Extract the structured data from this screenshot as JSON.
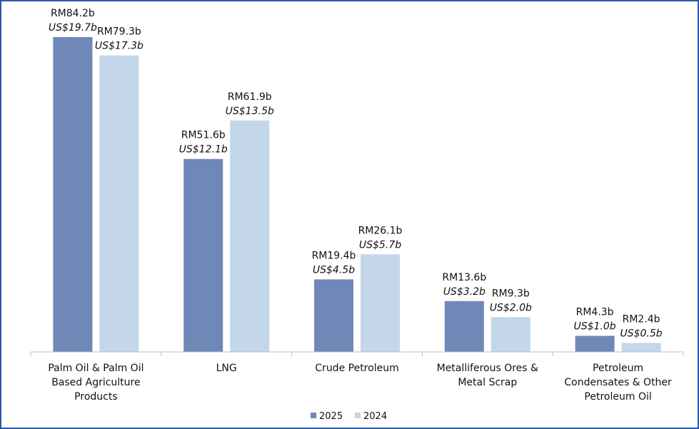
{
  "chart_data": {
    "type": "bar",
    "categories": [
      [
        "Palm Oil & Palm Oil",
        "Based Agriculture",
        "Products"
      ],
      [
        "LNG"
      ],
      [
        "Crude Petroleum"
      ],
      [
        "Metalliferous Ores &",
        "Metal Scrap"
      ],
      [
        "Petroleum",
        "Condensates & Other",
        "Petroleum Oil"
      ]
    ],
    "series": [
      {
        "name": "2025",
        "color": "#6f88b8",
        "values": [
          84.2,
          51.6,
          19.4,
          13.6,
          4.3
        ],
        "labels_rm": [
          "RM84.2b",
          "RM51.6b",
          "RM19.4b",
          "RM13.6b",
          "RM4.3b"
        ],
        "labels_us": [
          "US$19.7b",
          "US$12.1b",
          "US$4.5b",
          "US$3.2b",
          "US$1.0b"
        ]
      },
      {
        "name": "2024",
        "color": "#c3d6ea",
        "values": [
          79.3,
          61.9,
          26.1,
          9.3,
          2.4
        ],
        "labels_rm": [
          "RM79.3b",
          "RM61.9b",
          "RM26.1b",
          "RM9.3b",
          "RM2.4b"
        ],
        "labels_us": [
          "US$17.3b",
          "US$13.5b",
          "US$5.7b",
          "US$2.0b",
          "US$0.5b"
        ]
      }
    ],
    "ylim": [
      0,
      84.2
    ],
    "legend_position": "bottom-center",
    "grid": false
  }
}
